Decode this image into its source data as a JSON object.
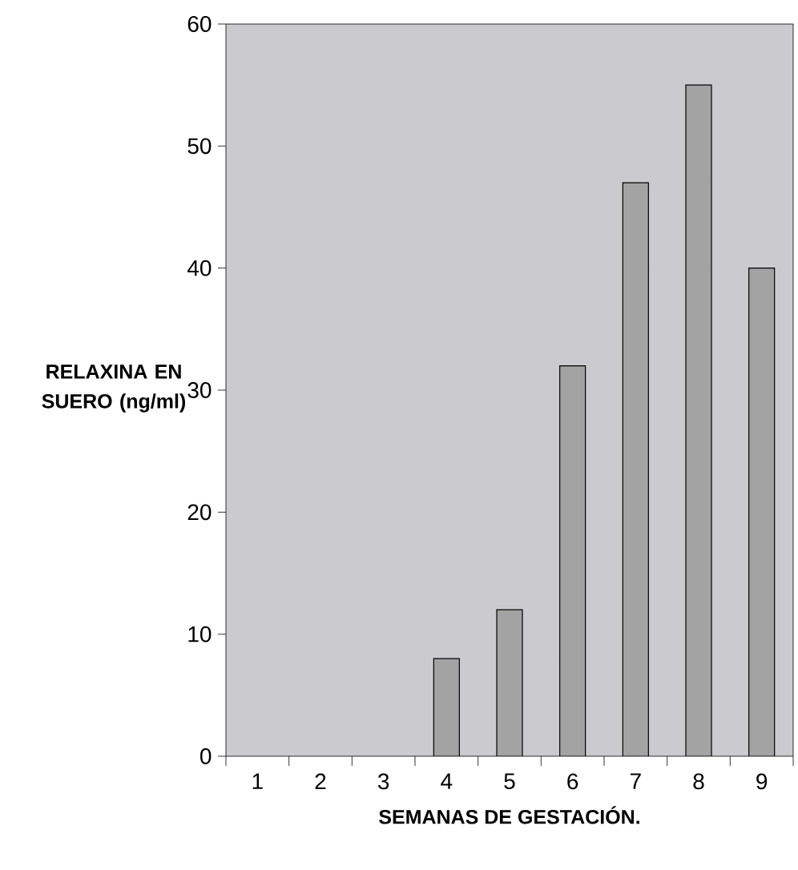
{
  "chart_data": {
    "type": "bar",
    "xlabel": "SEMANAS DE GESTACIÓN.",
    "ylabel": "RELAXINA EN SUERO (ng/ml)",
    "categories": [
      "1",
      "2",
      "3",
      "4",
      "5",
      "6",
      "7",
      "8",
      "9"
    ],
    "values": [
      null,
      null,
      null,
      8,
      12,
      32,
      47,
      55,
      40
    ],
    "color": "#a3a3a3",
    "ylim": [
      0,
      60
    ],
    "yticks": [
      0,
      10,
      20,
      30,
      40,
      50,
      60
    ],
    "grid": false
  }
}
